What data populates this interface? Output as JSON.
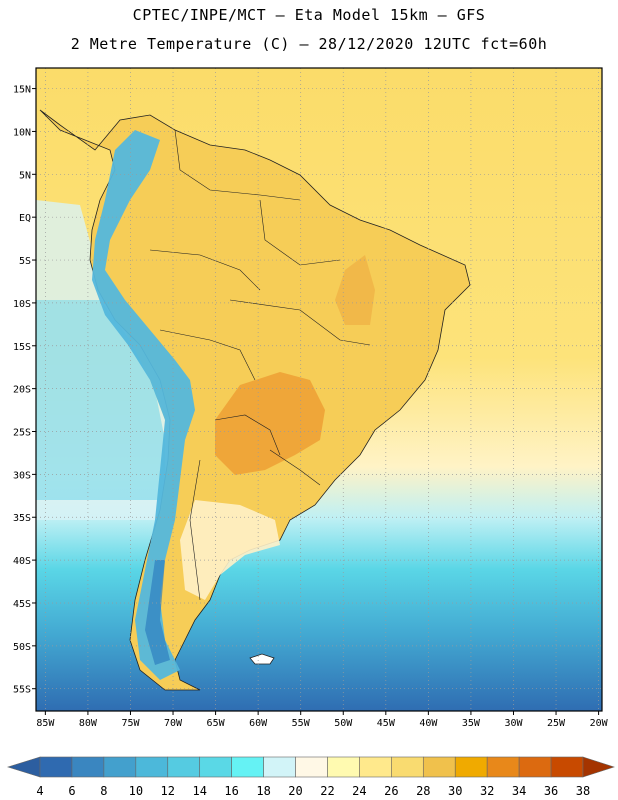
{
  "title_line1": "CPTEC/INPE/MCT –  Eta Model 15km – GFS",
  "title_line2": "2 Metre Temperature (C) – 28/12/2020 12UTC fct=60h",
  "lat_labels": [
    "15N",
    "10N",
    "5N",
    "EQ",
    "5S",
    "10S",
    "15S",
    "20S",
    "25S",
    "30S",
    "35S",
    "40S",
    "45S",
    "50S",
    "55S"
  ],
  "lat_values": [
    15,
    10,
    5,
    0,
    -5,
    -10,
    -15,
    -20,
    -25,
    -30,
    -35,
    -40,
    -45,
    -50,
    -55
  ],
  "lon_labels": [
    "85W",
    "80W",
    "75W",
    "70W",
    "65W",
    "60W",
    "55W",
    "50W",
    "45W",
    "40W",
    "35W",
    "30W",
    "25W",
    "20W"
  ],
  "lon_values": [
    -85,
    -80,
    -75,
    -70,
    -65,
    -60,
    -55,
    -50,
    -45,
    -40,
    -35,
    -30,
    -25,
    -20
  ],
  "colorbar": {
    "ticks": [
      "4",
      "6",
      "8",
      "10",
      "12",
      "14",
      "16",
      "18",
      "20",
      "22",
      "24",
      "26",
      "28",
      "30",
      "32",
      "34",
      "36",
      "38"
    ],
    "colors": [
      "#2f6ab0",
      "#3a86c0",
      "#43a0cd",
      "#4cb8da",
      "#55cbe1",
      "#5ad8e6",
      "#65f2f4",
      "#d2f4f8",
      "#fff8e6",
      "#fffab0",
      "#ffe98c",
      "#f9db70",
      "#f0c14c",
      "#f0aa00",
      "#e8881a",
      "#dc6a10",
      "#c84a00"
    ],
    "low_arrow_color": "#2c5ea0",
    "high_arrow_color": "#a43400"
  },
  "background_colors": {
    "tropical_ocean": "#fde36d",
    "warm_land": "#f6cd57",
    "hot_core": "#eea236",
    "mild": "#fff6c9",
    "cool_ocean": "#5ad2e4",
    "cold_ocean": "#2e75b8",
    "andes": "#54b7dc"
  }
}
